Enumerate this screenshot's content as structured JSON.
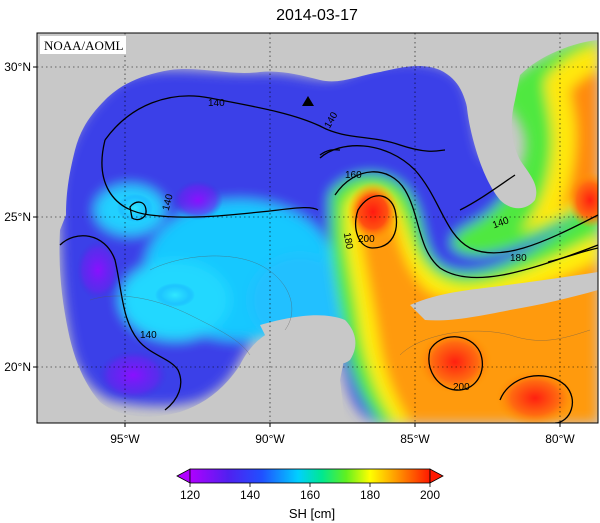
{
  "title": "2014-03-17",
  "credit": "NOAA/AOML",
  "axes": {
    "x_ticks": [
      "95°W",
      "90°W",
      "85°W",
      "80°W"
    ],
    "y_ticks": [
      "30°N",
      "25°N",
      "20°N"
    ]
  },
  "contour_labels": [
    "140",
    "140",
    "140",
    "140",
    "160",
    "180",
    "200",
    "180",
    "140",
    "200"
  ],
  "colorbar": {
    "ticks": [
      "120",
      "140",
      "160",
      "180",
      "200"
    ],
    "label": "SH [cm]",
    "range": [
      120,
      200
    ],
    "colors": [
      "#a000ff",
      "#3020e0",
      "#00e0ff",
      "#30e040",
      "#ffff00",
      "#ff9000",
      "#ff2000"
    ]
  },
  "colors": {
    "land": "#c8c8c8",
    "blue_water": "#3a3ae6",
    "cyan_water": "#20d8ff",
    "warm_core": "#ff3010"
  },
  "marker": "triangle-marker"
}
